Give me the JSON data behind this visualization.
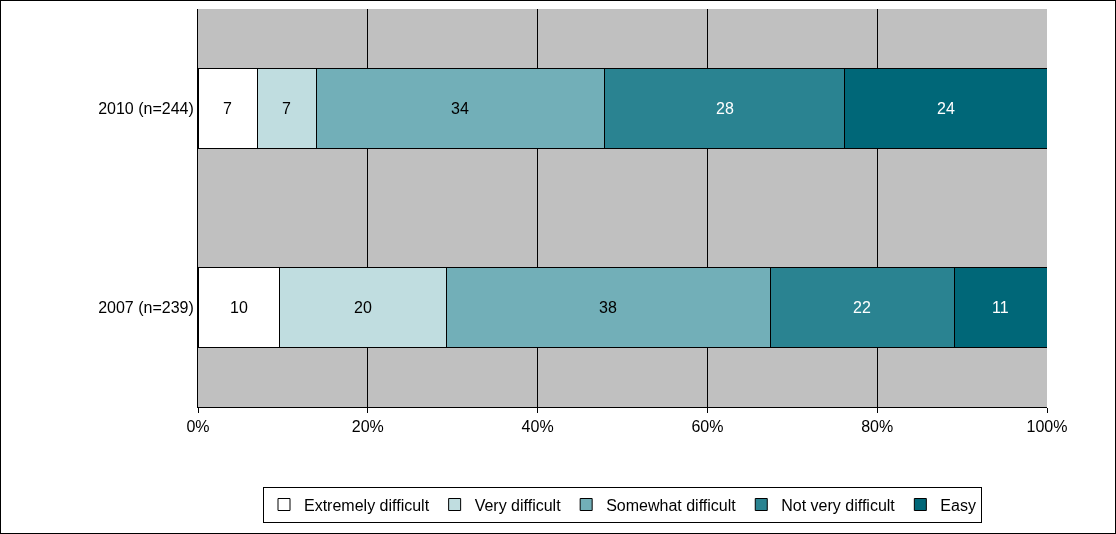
{
  "chart_data": {
    "type": "bar",
    "orientation": "horizontal",
    "stacked": true,
    "categories": [
      "2010 (n=244)",
      "2007 (n=239)"
    ],
    "series": [
      {
        "name": "Extremely difficult",
        "color": "#ffffff",
        "values": [
          7.0,
          9.6
        ],
        "value_labels": [
          "7",
          "10"
        ]
      },
      {
        "name": "Very difficult",
        "color": "#c0dde0",
        "values": [
          6.9,
          19.7
        ],
        "value_labels": [
          "7",
          "20"
        ]
      },
      {
        "name": "Somewhat difficult",
        "color": "#72afb8",
        "values": [
          34.0,
          38.1
        ],
        "value_labels": [
          "34",
          "38"
        ]
      },
      {
        "name": "Not very difficult",
        "color": "#2a8391",
        "values": [
          28.3,
          21.7
        ],
        "value_labels": [
          "28",
          "22"
        ]
      },
      {
        "name": "Easy",
        "color": "#006778",
        "values": [
          23.8,
          10.9
        ],
        "value_labels": [
          "24",
          "11"
        ]
      }
    ],
    "xlim": [
      0,
      100
    ],
    "xticks": [
      {
        "value": 0,
        "label": "0%"
      },
      {
        "value": 20,
        "label": "20%"
      },
      {
        "value": 40,
        "label": "40%"
      },
      {
        "value": 60,
        "label": "60%"
      },
      {
        "value": 80,
        "label": "80%"
      },
      {
        "value": 100,
        "label": "100%"
      }
    ],
    "grid": "x",
    "legend": "bottom"
  }
}
